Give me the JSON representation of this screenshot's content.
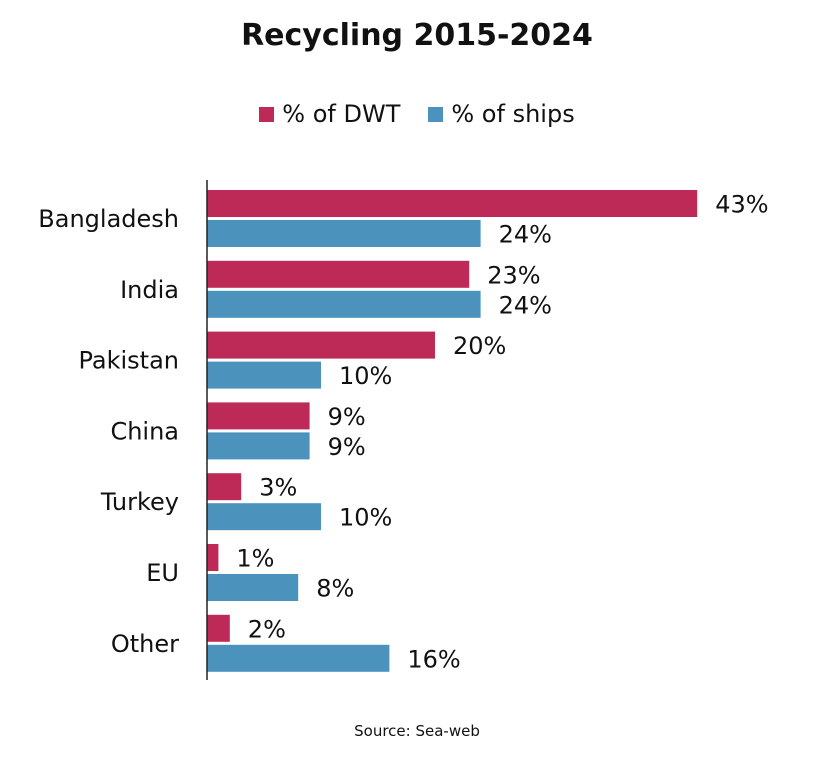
{
  "chart_data": {
    "type": "bar",
    "orientation": "horizontal",
    "title": "Recycling 2015-2024",
    "categories": [
      "Bangladesh",
      "India",
      "Pakistan",
      "China",
      "Turkey",
      "EU",
      "Other"
    ],
    "series": [
      {
        "name": "% of DWT",
        "color": "#be2a58",
        "values": [
          43,
          23,
          20,
          9,
          3,
          1,
          2
        ],
        "labels": [
          "43%",
          "23%",
          "20%",
          "9%",
          "3%",
          "1%",
          "2%"
        ]
      },
      {
        "name": "% of ships",
        "color": "#4b93bd",
        "values": [
          24,
          24,
          10,
          9,
          10,
          8,
          16
        ],
        "labels": [
          "24%",
          "24%",
          "10%",
          "9%",
          "10%",
          "8%",
          "16%"
        ]
      }
    ],
    "xlim": [
      0,
      45
    ],
    "grid": false,
    "legend_position": "top-center",
    "source": "Source: Sea-web"
  }
}
